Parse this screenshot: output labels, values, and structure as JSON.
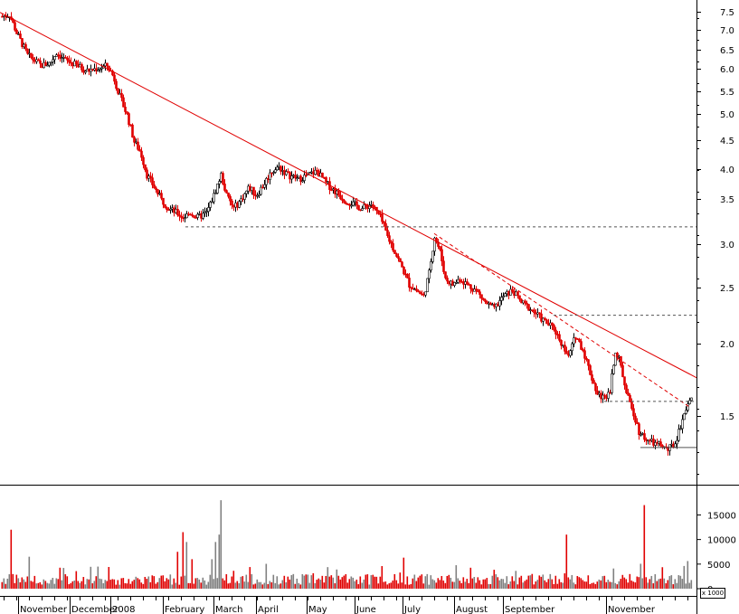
{
  "chart_data": {
    "type": "candlestick",
    "price_axis": {
      "scale": "log",
      "range": [
        1.12,
        8.05
      ],
      "tick_labels": [
        "7.5",
        "7.0",
        "6.5",
        "6.0",
        "5.5",
        "5.0",
        "4.5",
        "4.0",
        "3.5",
        "3.0",
        "2.5",
        "2.0",
        "1.5"
      ]
    },
    "volume_axis": {
      "range": [
        0,
        19500
      ],
      "tick_labels": [
        "15000",
        "10000",
        "5000",
        "0"
      ],
      "unit_label": "x 1000"
    },
    "month_labels": [
      "November",
      "December",
      "2008",
      "February",
      "March",
      "April",
      "May",
      "June",
      "July",
      "August",
      "September",
      "November"
    ],
    "colors": {
      "down": "#e00000",
      "up": "#000000",
      "volume_down": "#e00000",
      "volume_up": "#808080",
      "trendline": "#e00000",
      "support": "#555555"
    },
    "price_path": [
      [
        0,
        6.25
      ],
      [
        10,
        6.3
      ],
      [
        18,
        5.9
      ],
      [
        30,
        5.45
      ],
      [
        45,
        5.25
      ],
      [
        55,
        5.3
      ],
      [
        62,
        5.5
      ],
      [
        72,
        5.35
      ],
      [
        85,
        5.25
      ],
      [
        95,
        5.15
      ],
      [
        108,
        5.2
      ],
      [
        118,
        5.25
      ],
      [
        125,
        5.05
      ],
      [
        132,
        4.7
      ],
      [
        140,
        4.4
      ],
      [
        148,
        4.0
      ],
      [
        155,
        3.85
      ],
      [
        162,
        3.55
      ],
      [
        170,
        3.4
      ],
      [
        178,
        3.25
      ],
      [
        186,
        3.15
      ],
      [
        195,
        3.1
      ],
      [
        202,
        3.05
      ],
      [
        210,
        3.1
      ],
      [
        218,
        3.05
      ],
      [
        228,
        3.1
      ],
      [
        236,
        3.3
      ],
      [
        244,
        3.55
      ],
      [
        250,
        3.3
      ],
      [
        258,
        3.15
      ],
      [
        266,
        3.25
      ],
      [
        275,
        3.4
      ],
      [
        283,
        3.3
      ],
      [
        292,
        3.45
      ],
      [
        300,
        3.6
      ],
      [
        308,
        3.65
      ],
      [
        318,
        3.55
      ],
      [
        330,
        3.5
      ],
      [
        340,
        3.55
      ],
      [
        350,
        3.6
      ],
      [
        360,
        3.45
      ],
      [
        370,
        3.35
      ],
      [
        380,
        3.25
      ],
      [
        390,
        3.2
      ],
      [
        400,
        3.15
      ],
      [
        410,
        3.2
      ],
      [
        420,
        3.05
      ],
      [
        428,
        2.85
      ],
      [
        436,
        2.7
      ],
      [
        444,
        2.55
      ],
      [
        452,
        2.4
      ],
      [
        460,
        2.35
      ],
      [
        468,
        2.3
      ],
      [
        474,
        2.5
      ],
      [
        480,
        2.85
      ],
      [
        486,
        2.7
      ],
      [
        492,
        2.45
      ],
      [
        500,
        2.4
      ],
      [
        508,
        2.45
      ],
      [
        516,
        2.4
      ],
      [
        526,
        2.35
      ],
      [
        536,
        2.25
      ],
      [
        546,
        2.2
      ],
      [
        556,
        2.3
      ],
      [
        566,
        2.35
      ],
      [
        576,
        2.25
      ],
      [
        586,
        2.2
      ],
      [
        594,
        2.15
      ],
      [
        602,
        2.1
      ],
      [
        612,
        2.05
      ],
      [
        620,
        1.95
      ],
      [
        628,
        1.85
      ],
      [
        636,
        2.0
      ],
      [
        644,
        1.9
      ],
      [
        652,
        1.75
      ],
      [
        660,
        1.62
      ],
      [
        668,
        1.6
      ],
      [
        674,
        1.65
      ],
      [
        680,
        1.9
      ],
      [
        686,
        1.8
      ],
      [
        692,
        1.62
      ],
      [
        698,
        1.55
      ],
      [
        706,
        1.42
      ],
      [
        714,
        1.38
      ],
      [
        722,
        1.36
      ],
      [
        730,
        1.35
      ],
      [
        738,
        1.33
      ],
      [
        746,
        1.36
      ],
      [
        752,
        1.45
      ],
      [
        758,
        1.55
      ],
      [
        764,
        1.6
      ]
    ],
    "trendlines": [
      {
        "style": "solid",
        "from": [
          0,
          6.35
        ],
        "to": [
          770,
          1.72
        ]
      },
      {
        "style": "dashed",
        "from": [
          480,
          2.88
        ],
        "to": [
          762,
          1.55
        ]
      }
    ],
    "support_lines": [
      {
        "style": "dashed",
        "from": [
          205,
          2.95
        ],
        "to": [
          770,
          2.95
        ]
      },
      {
        "style": "dashed",
        "from": [
          612,
          2.15
        ],
        "to": [
          770,
          2.15
        ]
      },
      {
        "style": "dashed",
        "from": [
          668,
          1.58
        ],
        "to": [
          770,
          1.58
        ]
      },
      {
        "style": "solid",
        "from": [
          708,
          1.34
        ],
        "to": [
          770,
          1.34
        ]
      }
    ],
    "volume_spikes": [
      [
        12,
        12000
      ],
      [
        32,
        6500
      ],
      [
        202,
        11500
      ],
      [
        206,
        9500
      ],
      [
        238,
        9500
      ],
      [
        242,
        11000
      ],
      [
        244,
        18000
      ],
      [
        626,
        11000
      ],
      [
        712,
        17000
      ],
      [
        196,
        7500
      ],
      [
        212,
        6000
      ],
      [
        234,
        6000
      ]
    ]
  }
}
